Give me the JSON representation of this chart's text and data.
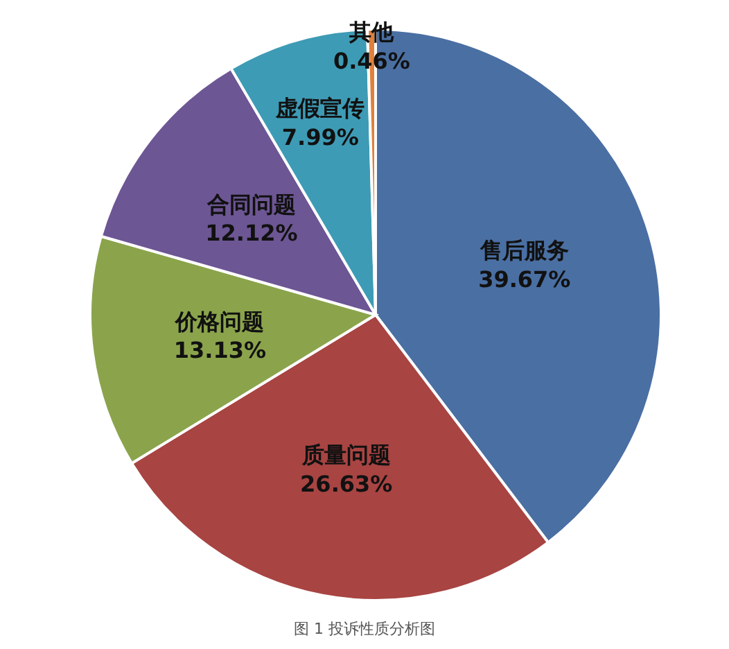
{
  "chart_data": {
    "type": "pie",
    "categories": [
      "售后服务",
      "质量问题",
      "价格问题",
      "合同问题",
      "虚假宣传",
      "其他"
    ],
    "values": [
      39.67,
      26.63,
      13.13,
      12.12,
      7.99,
      0.46
    ],
    "value_labels": [
      "39.67%",
      "26.63%",
      "13.13%",
      "12.12%",
      "7.99%",
      "0.46%"
    ],
    "colors": [
      "#4a6fa3",
      "#a84442",
      "#8ba44c",
      "#6d5694",
      "#3e9bb5",
      "#e0803a"
    ],
    "annotations": [
      "图 1 投诉性质分析图"
    ],
    "legend": false
  }
}
